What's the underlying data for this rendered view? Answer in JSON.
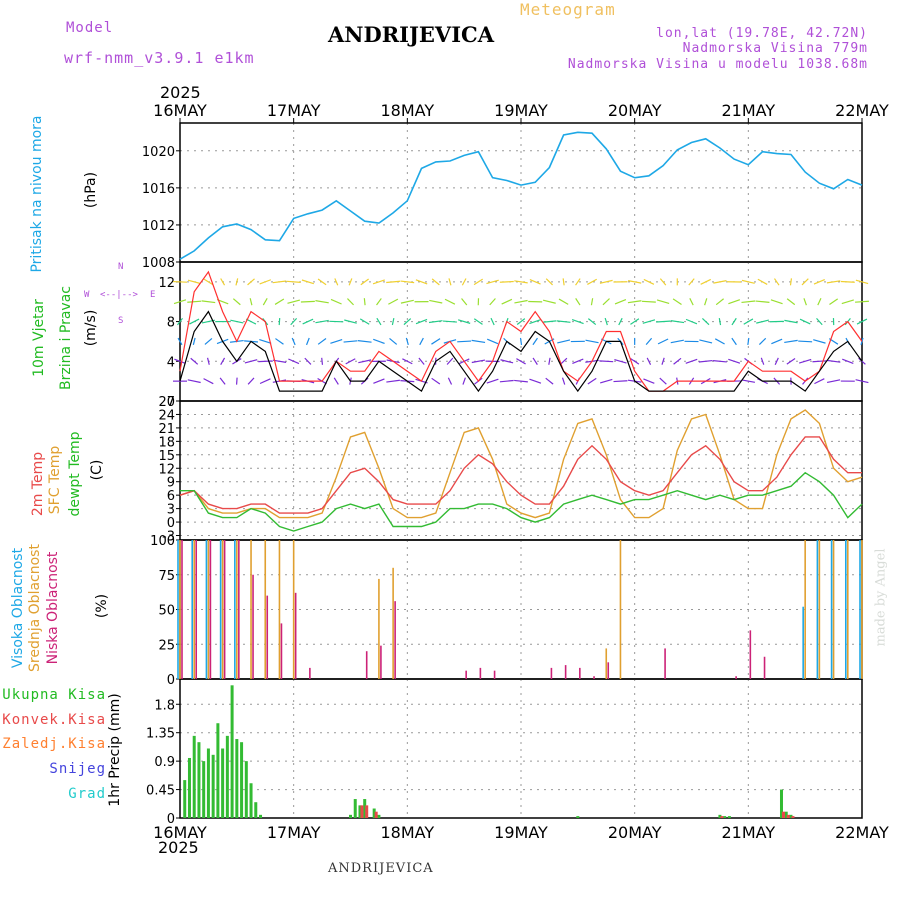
{
  "header": {
    "model_label": "Model",
    "model_value": "wrf-nmm_v3.9.1 e1km",
    "title": "ANDRIJEVICA",
    "meteogram": "Meteogram",
    "lonlat": "lon,lat (19.78E, 42.72N)",
    "altitude": "Nadmorska Visina 779m",
    "altitude_model": "Nadmorska Visina u modelu 1038.68m",
    "year_top": "2025",
    "year_bottom": "2025",
    "footer": "ANDRIJEVICA",
    "credit": "made by Angel"
  },
  "colors": {
    "pressure": "#1ea8e6",
    "temp2m": "#e84a4a",
    "sfc": "#e0a030",
    "dew": "#33bb33",
    "high_cloud": "#1ea8e6",
    "mid_cloud": "#e0a030",
    "low_cloud": "#cc2277",
    "precip_total": "#33bb33",
    "precip_conv": "#e84a4a",
    "wind_speed": "#000000",
    "wind_gust": "#ff3030",
    "grid": "#999999"
  },
  "panels": {
    "pressure": {
      "label": "Pritisak na nivou mora",
      "unit": "(hPa)"
    },
    "wind": {
      "label1": "10m Vjetar",
      "label2": "Brzina i Pravac",
      "unit": "(m/s)",
      "compass": {
        "n": "N",
        "s": "S",
        "e": "E",
        "w": "W"
      }
    },
    "temp": {
      "label1": "2m Temp",
      "label2": "SFC Temp",
      "label3": "dewpt Temp",
      "unit": "(C)"
    },
    "cloud": {
      "label1": "Visoka Oblacnost",
      "label2": "Srednja Oblacnost",
      "label3": "Niska Oblacnost",
      "unit": "(%)"
    },
    "precip": {
      "unit": "1hr Precip (mm)",
      "legend": [
        "Ukupna Kisa",
        "Konvek.Kisa",
        "Zaledj.Kisa",
        "Snijeg",
        "Grad"
      ]
    }
  },
  "chart_data": [
    {
      "type": "line",
      "name": "pressure",
      "x_categories": [
        "16MAY",
        "17MAY",
        "18MAY",
        "19MAY",
        "20MAY",
        "21MAY",
        "22MAY"
      ],
      "x_hours": [
        0,
        3,
        6,
        9,
        12,
        15,
        18,
        21,
        24,
        27,
        30,
        33,
        36,
        39,
        42,
        45,
        48,
        51,
        54,
        57,
        60,
        63,
        66,
        69,
        72,
        75,
        78,
        81,
        84,
        87,
        90,
        93,
        96,
        99,
        102,
        105,
        108,
        111,
        114,
        117,
        120,
        123,
        126,
        129,
        132,
        135,
        138,
        141,
        144
      ],
      "series": [
        {
          "values": [
            1008.3,
            1009.2,
            1010.6,
            1011.8,
            1012.1,
            1011.5,
            1010.4,
            1010.3,
            1012.7,
            1013.2,
            1013.6,
            1014.6,
            1013.5,
            1012.4,
            1012.2,
            1013.3,
            1014.6,
            1018.1,
            1018.8,
            1018.9,
            1019.5,
            1019.9,
            1017.1,
            1016.8,
            1016.3,
            1016.6,
            1018.2,
            1021.7,
            1022.0,
            1021.9,
            1020.2,
            1017.8,
            1017.1,
            1017.3,
            1018.4,
            1020.1,
            1020.9,
            1021.3,
            1020.3,
            1019.1,
            1018.5,
            1019.9,
            1019.7,
            1019.6,
            1017.7,
            1016.5,
            1015.9,
            1016.9,
            1016.3
          ]
        }
      ],
      "ylabel": "(hPa)",
      "ylim": [
        1008,
        1023
      ],
      "yticks": [
        1008,
        1012,
        1016,
        1020
      ],
      "grid": true
    },
    {
      "type": "line",
      "name": "wind",
      "x_categories": [
        "16MAY",
        "17MAY",
        "18MAY",
        "19MAY",
        "20MAY",
        "21MAY",
        "22MAY"
      ],
      "x_hours": [
        0,
        3,
        6,
        9,
        12,
        15,
        18,
        21,
        24,
        27,
        30,
        33,
        36,
        39,
        42,
        45,
        48,
        51,
        54,
        57,
        60,
        63,
        66,
        69,
        72,
        75,
        78,
        81,
        84,
        87,
        90,
        93,
        96,
        99,
        102,
        105,
        108,
        111,
        114,
        117,
        120,
        123,
        126,
        129,
        132,
        135,
        138,
        141,
        144
      ],
      "series": [
        {
          "name_color": "speed",
          "values": [
            2,
            7,
            9,
            6,
            4,
            6,
            5,
            1,
            1,
            1,
            1,
            4,
            2,
            2,
            4,
            3,
            2,
            1,
            4,
            5,
            3,
            1,
            3,
            6,
            5,
            7,
            6,
            3,
            1,
            3,
            6,
            6,
            2,
            1,
            1,
            1,
            1,
            1,
            1,
            1,
            3,
            2,
            2,
            2,
            1,
            3,
            5,
            6,
            4
          ]
        },
        {
          "name_color": "gust",
          "values": [
            3,
            11,
            13,
            9,
            6,
            9,
            8,
            2,
            2,
            2,
            2,
            4,
            3,
            3,
            5,
            4,
            3,
            2,
            5,
            6,
            4,
            2,
            4,
            8,
            7,
            9,
            7,
            3,
            2,
            4,
            7,
            7,
            3,
            1,
            1,
            2,
            2,
            2,
            2,
            2,
            4,
            3,
            3,
            3,
            2,
            3,
            7,
            8,
            6
          ]
        }
      ],
      "ylabel": "(m/s)",
      "ylim": [
        0,
        14
      ],
      "yticks": [
        0,
        4,
        8,
        12
      ],
      "grid": true
    },
    {
      "type": "line",
      "name": "temperature",
      "x_categories": [
        "16MAY",
        "17MAY",
        "18MAY",
        "19MAY",
        "20MAY",
        "21MAY",
        "22MAY"
      ],
      "x_hours": [
        0,
        3,
        6,
        9,
        12,
        15,
        18,
        21,
        24,
        27,
        30,
        33,
        36,
        39,
        42,
        45,
        48,
        51,
        54,
        57,
        60,
        63,
        66,
        69,
        72,
        75,
        78,
        81,
        84,
        87,
        90,
        93,
        96,
        99,
        102,
        105,
        108,
        111,
        114,
        117,
        120,
        123,
        126,
        129,
        132,
        135,
        138,
        141,
        144
      ],
      "series": [
        {
          "key": "t2m",
          "values": [
            6,
            7,
            4,
            3,
            3,
            4,
            4,
            2,
            2,
            2,
            3,
            7,
            11,
            12,
            9,
            5,
            4,
            4,
            4,
            7,
            12,
            15,
            13,
            9,
            6,
            4,
            4,
            8,
            14,
            17,
            14,
            9,
            7,
            6,
            7,
            11,
            15,
            17,
            14,
            9,
            7,
            7,
            10,
            15,
            19,
            19,
            14,
            11,
            11
          ]
        },
        {
          "key": "sfc",
          "values": [
            6,
            7,
            3,
            2,
            2,
            3,
            3,
            1,
            1,
            1,
            2,
            10,
            19,
            20,
            12,
            3,
            1,
            1,
            2,
            11,
            20,
            21,
            14,
            4,
            2,
            1,
            2,
            14,
            22,
            23,
            15,
            5,
            1,
            1,
            3,
            16,
            23,
            24,
            15,
            5,
            3,
            3,
            15,
            23,
            25,
            22,
            12,
            9,
            10
          ]
        },
        {
          "key": "dew",
          "values": [
            7,
            7,
            2,
            1,
            1,
            3,
            2,
            -1,
            -2,
            -1,
            0,
            3,
            4,
            3,
            4,
            -1,
            -1,
            -1,
            0,
            3,
            3,
            4,
            4,
            3,
            1,
            0,
            1,
            4,
            5,
            6,
            5,
            4,
            5,
            5,
            6,
            7,
            6,
            5,
            6,
            5,
            6,
            6,
            7,
            8,
            11,
            9,
            6,
            1,
            4
          ]
        }
      ],
      "ylabel": "(C)",
      "ylim": [
        -4,
        27
      ],
      "yticks": [
        -3,
        0,
        3,
        6,
        9,
        12,
        15,
        18,
        21,
        24,
        27
      ],
      "grid": true
    },
    {
      "type": "bar",
      "name": "cloud",
      "x_categories": [
        "16MAY",
        "17MAY",
        "18MAY",
        "19MAY",
        "20MAY",
        "21MAY",
        "22MAY"
      ],
      "x_hours": [
        0,
        3,
        6,
        9,
        12,
        15,
        18,
        21,
        24,
        27,
        30,
        33,
        36,
        39,
        42,
        45,
        48,
        51,
        54,
        57,
        60,
        63,
        66,
        69,
        72,
        75,
        78,
        81,
        84,
        87,
        90,
        93,
        96,
        99,
        102,
        105,
        108,
        111,
        114,
        117,
        120,
        123,
        126,
        129,
        132,
        135,
        138,
        141,
        144
      ],
      "series": [
        {
          "key": "high",
          "values": [
            100,
            100,
            100,
            100,
            100,
            0,
            0,
            0,
            0,
            0,
            0,
            0,
            0,
            0,
            0,
            0,
            0,
            0,
            0,
            0,
            0,
            0,
            0,
            0,
            0,
            0,
            0,
            0,
            0,
            0,
            0,
            0,
            0,
            0,
            0,
            0,
            0,
            0,
            0,
            0,
            0,
            0,
            0,
            0,
            52,
            100,
            100,
            100,
            100
          ]
        },
        {
          "key": "mid",
          "values": [
            100,
            100,
            100,
            100,
            100,
            100,
            100,
            100,
            100,
            0,
            0,
            0,
            0,
            0,
            72,
            80,
            0,
            0,
            0,
            0,
            0,
            0,
            0,
            0,
            0,
            0,
            0,
            0,
            0,
            0,
            22,
            100,
            0,
            0,
            0,
            0,
            0,
            0,
            0,
            0,
            0,
            0,
            0,
            0,
            100,
            100,
            100,
            100,
            100
          ]
        },
        {
          "key": "low",
          "values": [
            100,
            100,
            100,
            100,
            100,
            75,
            60,
            40,
            62,
            8,
            0,
            0,
            0,
            20,
            24,
            56,
            0,
            0,
            0,
            0,
            6,
            8,
            6,
            0,
            0,
            0,
            8,
            10,
            8,
            2,
            12,
            0,
            0,
            0,
            22,
            0,
            0,
            0,
            0,
            2,
            35,
            16,
            0,
            0,
            0,
            0,
            0,
            0,
            0
          ]
        }
      ],
      "ylabel": "(%)",
      "ylim": [
        0,
        100
      ],
      "yticks": [
        0,
        25,
        50,
        75,
        100
      ],
      "grid": true
    },
    {
      "type": "bar",
      "name": "precipitation",
      "x_categories": [
        "16MAY",
        "17MAY",
        "18MAY",
        "19MAY",
        "20MAY",
        "21MAY",
        "22MAY"
      ],
      "x_hours": [
        1,
        2,
        3,
        4,
        5,
        6,
        7,
        8,
        9,
        10,
        11,
        12,
        13,
        14,
        15,
        16,
        17,
        36,
        37,
        38,
        39,
        41,
        42,
        84,
        114,
        115,
        116,
        127,
        128,
        129
      ],
      "series": [
        {
          "key": "total",
          "values": [
            0.6,
            0.95,
            1.3,
            1.2,
            0.9,
            1.1,
            1.0,
            1.5,
            1.1,
            1.3,
            2.1,
            1.25,
            1.2,
            0.9,
            0.55,
            0.25,
            0.05,
            0.05,
            0.3,
            0.2,
            0.3,
            0.15,
            0.05,
            0.03,
            0.05,
            0.03,
            0.03,
            0.45,
            0.1,
            0.05
          ]
        },
        {
          "key": "convective",
          "values": [
            0,
            0,
            0,
            0,
            0,
            0,
            0,
            0,
            0,
            0,
            0,
            0,
            0,
            0,
            0,
            0,
            0,
            0,
            0,
            0.2,
            0.2,
            0.1,
            0,
            0,
            0.03,
            0,
            0,
            0.1,
            0.05,
            0.03
          ]
        }
      ],
      "ylabel": "1hr Precip (mm)",
      "ylim": [
        0,
        2.2
      ],
      "yticks": [
        0,
        0.45,
        0.9,
        1.35,
        1.8
      ],
      "grid": true
    }
  ]
}
